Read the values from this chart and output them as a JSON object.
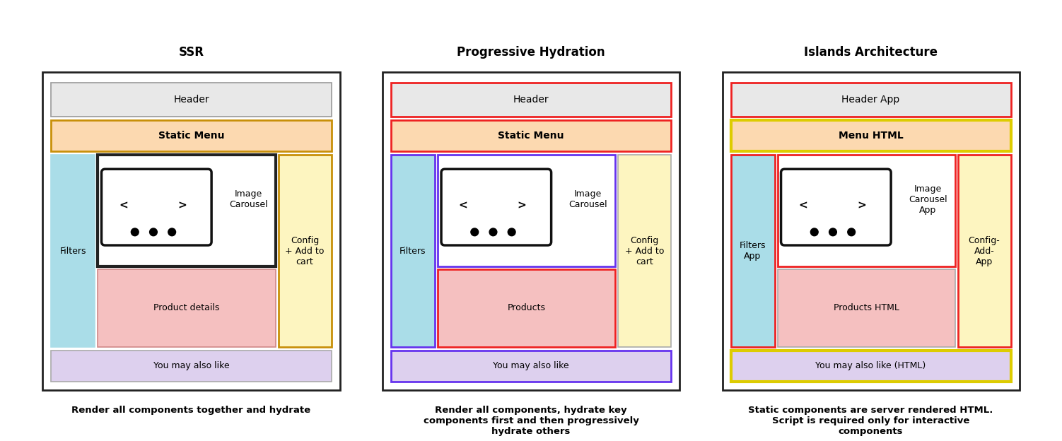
{
  "fig_w": 15.02,
  "fig_h": 6.24,
  "dpi": 100,
  "bg_color": "#ffffff",
  "panels": [
    {
      "title": "SSR",
      "caption": "Render all components together and hydrate",
      "caption_lines": 1,
      "col": 0,
      "outer_border": "#222222",
      "components": [
        {
          "id": "header",
          "label": "Header",
          "color": "#e8e8e8",
          "border": "#999999",
          "lw": 1.2,
          "row": 0
        },
        {
          "id": "menu",
          "label": "Static Menu",
          "color": "#fcd9b0",
          "border": "#c8900a",
          "lw": 2.0,
          "row": 1
        },
        {
          "id": "filters",
          "label": "Filters",
          "color": "#aadde8",
          "border": "#aadde8",
          "lw": 1.2,
          "special": "filters"
        },
        {
          "id": "carousel",
          "label": "Image\nCarousel",
          "color": "#ffffff",
          "border": "#222222",
          "lw": 3.0,
          "special": "carousel"
        },
        {
          "id": "product",
          "label": "Product details",
          "color": "#f5c0c0",
          "border": "#d08888",
          "lw": 1.2,
          "special": "product"
        },
        {
          "id": "config",
          "label": "Config\n+ Add to\ncart",
          "color": "#fdf5c0",
          "border": "#c8900a",
          "lw": 2.0,
          "special": "config"
        },
        {
          "id": "also",
          "label": "You may also like",
          "color": "#ddd0ee",
          "border": "#aaaaaa",
          "lw": 1.2,
          "row": 6
        }
      ]
    },
    {
      "title": "Progressive Hydration",
      "caption": "Render all components, hydrate key\ncomponents first and then progressively\nhydrate others",
      "caption_lines": 3,
      "col": 1,
      "outer_border": "#222222",
      "components": [
        {
          "id": "header",
          "label": "Header",
          "color": "#e8e8e8",
          "border": "#ee2222",
          "lw": 2.0,
          "row": 0
        },
        {
          "id": "menu",
          "label": "Static Menu",
          "color": "#fcd9b0",
          "border": "#ee2222",
          "lw": 2.0,
          "row": 1
        },
        {
          "id": "filters",
          "label": "Filters",
          "color": "#aadde8",
          "border": "#6633ee",
          "lw": 2.0,
          "special": "filters"
        },
        {
          "id": "carousel",
          "label": "Image\nCarousel",
          "color": "#ffffff",
          "border": "#6633ee",
          "lw": 2.0,
          "special": "carousel"
        },
        {
          "id": "product",
          "label": "Products",
          "color": "#f5c0c0",
          "border": "#ee2222",
          "lw": 2.0,
          "special": "product"
        },
        {
          "id": "config",
          "label": "Config\n+ Add to\ncart",
          "color": "#fdf5c0",
          "border": "#aaaaaa",
          "lw": 1.2,
          "special": "config"
        },
        {
          "id": "also",
          "label": "You may also like",
          "color": "#ddd0ee",
          "border": "#6633ee",
          "lw": 2.0,
          "row": 6
        }
      ]
    },
    {
      "title": "Islands Architecture",
      "caption": "Static components are server rendered HTML.\nScript is required only for interactive\ncomponents",
      "caption_lines": 3,
      "col": 2,
      "outer_border": "#222222",
      "components": [
        {
          "id": "header",
          "label": "Header App",
          "color": "#e8e8e8",
          "border": "#ee2222",
          "lw": 2.0,
          "row": 0
        },
        {
          "id": "menu",
          "label": "Menu HTML",
          "color": "#fcd9b0",
          "border": "#ddcc00",
          "lw": 3.0,
          "row": 1
        },
        {
          "id": "filters",
          "label": "Filters\nApp",
          "color": "#aadde8",
          "border": "#ee2222",
          "lw": 2.0,
          "special": "filters"
        },
        {
          "id": "carousel",
          "label": "Image\nCarousel\nApp",
          "color": "#ffffff",
          "border": "#ee2222",
          "lw": 2.0,
          "special": "carousel"
        },
        {
          "id": "product",
          "label": "Products HTML",
          "color": "#f5c0c0",
          "border": "#aaaaaa",
          "lw": 1.2,
          "special": "product"
        },
        {
          "id": "config",
          "label": "Config-\nAdd-\nApp",
          "color": "#fdf5c0",
          "border": "#ee2222",
          "lw": 2.0,
          "special": "config"
        },
        {
          "id": "also",
          "label": "You may also like (HTML)",
          "color": "#ddd0ee",
          "border": "#ddcc00",
          "lw": 3.0,
          "row": 6
        }
      ]
    }
  ]
}
